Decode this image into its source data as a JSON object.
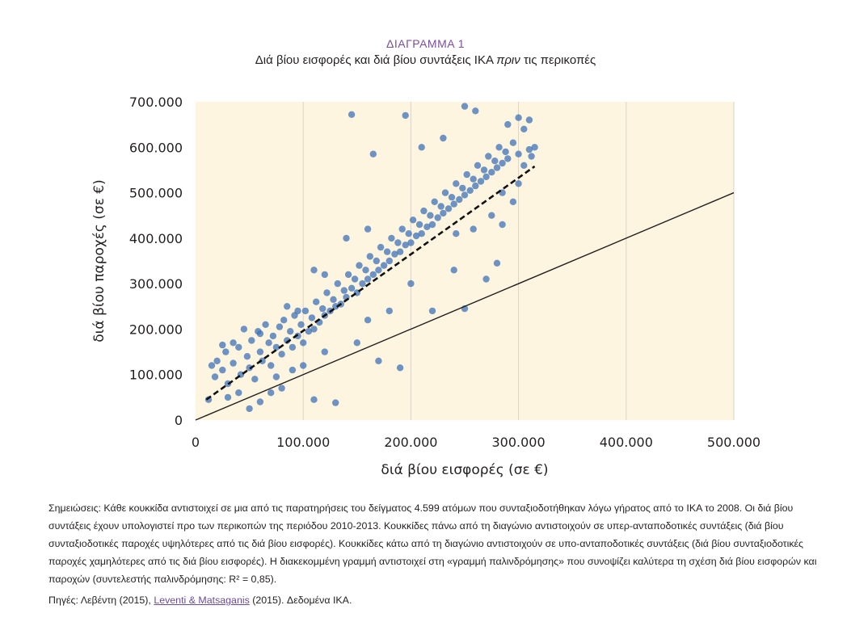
{
  "figure": {
    "label": "ΔΙΑΓΡΑΜΜΑ 1",
    "title_pre": "Διά βίου εισφορές και διά βίου συντάξεις ΙΚΑ ",
    "title_italic": "πριν",
    "title_post": " τις περικοπές"
  },
  "chart_data": {
    "type": "scatter",
    "xlabel": "διά βίου εισφορές (σε €)",
    "ylabel": "διά βίου παροχές (σε €)",
    "xlim": [
      0,
      500000
    ],
    "ylim": [
      0,
      700000
    ],
    "xticks": [
      0,
      100000,
      200000,
      300000,
      400000,
      500000
    ],
    "xtick_labels": [
      "0",
      "100.000",
      "200.000",
      "300.000",
      "400.000",
      "500.000"
    ],
    "yticks": [
      0,
      100000,
      200000,
      300000,
      400000,
      500000,
      600000,
      700000
    ],
    "ytick_labels": [
      "0",
      "100.000",
      "200.000",
      "300.000",
      "400.000",
      "500.000",
      "600.000",
      "700.000"
    ],
    "grid": "vertical",
    "plot_background": "#fdf5e0",
    "point_color": "#3d72b8",
    "n_observations": 4599,
    "diagonal_line": {
      "x": [
        0,
        500000
      ],
      "y": [
        0,
        500000
      ],
      "style": "solid",
      "color": "#231f20"
    },
    "regression_line": {
      "x": [
        10000,
        315000
      ],
      "y": [
        45000,
        558000
      ],
      "style": "dashed",
      "color": "#111111",
      "r_squared": 0.85
    },
    "points": [
      [
        12000,
        45000
      ],
      [
        18000,
        95000
      ],
      [
        20000,
        130000
      ],
      [
        25000,
        110000
      ],
      [
        28000,
        150000
      ],
      [
        30000,
        80000
      ],
      [
        35000,
        125000
      ],
      [
        40000,
        160000
      ],
      [
        42000,
        100000
      ],
      [
        45000,
        200000
      ],
      [
        48000,
        140000
      ],
      [
        50000,
        115000
      ],
      [
        52000,
        175000
      ],
      [
        55000,
        90000
      ],
      [
        58000,
        195000
      ],
      [
        60000,
        150000
      ],
      [
        62000,
        130000
      ],
      [
        65000,
        210000
      ],
      [
        68000,
        170000
      ],
      [
        70000,
        120000
      ],
      [
        72000,
        185000
      ],
      [
        75000,
        160000
      ],
      [
        78000,
        205000
      ],
      [
        80000,
        145000
      ],
      [
        82000,
        220000
      ],
      [
        85000,
        175000
      ],
      [
        88000,
        195000
      ],
      [
        90000,
        160000
      ],
      [
        92000,
        230000
      ],
      [
        95000,
        185000
      ],
      [
        98000,
        210000
      ],
      [
        100000,
        170000
      ],
      [
        102000,
        240000
      ],
      [
        105000,
        195000
      ],
      [
        108000,
        225000
      ],
      [
        110000,
        200000
      ],
      [
        112000,
        260000
      ],
      [
        115000,
        215000
      ],
      [
        118000,
        245000
      ],
      [
        120000,
        230000
      ],
      [
        122000,
        280000
      ],
      [
        125000,
        240000
      ],
      [
        128000,
        265000
      ],
      [
        130000,
        250000
      ],
      [
        132000,
        300000
      ],
      [
        135000,
        255000
      ],
      [
        138000,
        285000
      ],
      [
        140000,
        270000
      ],
      [
        142000,
        320000
      ],
      [
        145000,
        290000
      ],
      [
        148000,
        310000
      ],
      [
        150000,
        280000
      ],
      [
        152000,
        340000
      ],
      [
        155000,
        300000
      ],
      [
        158000,
        330000
      ],
      [
        160000,
        310000
      ],
      [
        162000,
        360000
      ],
      [
        165000,
        320000
      ],
      [
        168000,
        350000
      ],
      [
        170000,
        330000
      ],
      [
        172000,
        380000
      ],
      [
        175000,
        340000
      ],
      [
        178000,
        370000
      ],
      [
        180000,
        350000
      ],
      [
        182000,
        400000
      ],
      [
        185000,
        365000
      ],
      [
        188000,
        390000
      ],
      [
        190000,
        370000
      ],
      [
        192000,
        420000
      ],
      [
        195000,
        385000
      ],
      [
        198000,
        410000
      ],
      [
        200000,
        390000
      ],
      [
        202000,
        440000
      ],
      [
        205000,
        405000
      ],
      [
        208000,
        430000
      ],
      [
        210000,
        410000
      ],
      [
        212000,
        460000
      ],
      [
        215000,
        425000
      ],
      [
        218000,
        450000
      ],
      [
        220000,
        430000
      ],
      [
        222000,
        480000
      ],
      [
        225000,
        445000
      ],
      [
        228000,
        470000
      ],
      [
        230000,
        455000
      ],
      [
        232000,
        500000
      ],
      [
        235000,
        465000
      ],
      [
        238000,
        490000
      ],
      [
        240000,
        475000
      ],
      [
        242000,
        520000
      ],
      [
        245000,
        485000
      ],
      [
        248000,
        510000
      ],
      [
        250000,
        495000
      ],
      [
        252000,
        540000
      ],
      [
        255000,
        505000
      ],
      [
        258000,
        530000
      ],
      [
        260000,
        515000
      ],
      [
        262000,
        560000
      ],
      [
        265000,
        525000
      ],
      [
        268000,
        550000
      ],
      [
        270000,
        535000
      ],
      [
        272000,
        580000
      ],
      [
        275000,
        545000
      ],
      [
        278000,
        570000
      ],
      [
        280000,
        555000
      ],
      [
        282000,
        600000
      ],
      [
        285000,
        565000
      ],
      [
        288000,
        590000
      ],
      [
        290000,
        575000
      ],
      [
        295000,
        610000
      ],
      [
        300000,
        585000
      ],
      [
        305000,
        640000
      ],
      [
        310000,
        595000
      ],
      [
        145000,
        672000
      ],
      [
        250000,
        690000
      ],
      [
        260000,
        680000
      ],
      [
        195000,
        670000
      ],
      [
        165000,
        585000
      ],
      [
        210000,
        600000
      ],
      [
        230000,
        620000
      ],
      [
        300000,
        665000
      ],
      [
        310000,
        660000
      ],
      [
        290000,
        650000
      ],
      [
        70000,
        60000
      ],
      [
        80000,
        70000
      ],
      [
        110000,
        45000
      ],
      [
        130000,
        38000
      ],
      [
        50000,
        25000
      ],
      [
        60000,
        40000
      ],
      [
        170000,
        130000
      ],
      [
        190000,
        115000
      ],
      [
        220000,
        240000
      ],
      [
        250000,
        245000
      ],
      [
        270000,
        310000
      ],
      [
        280000,
        345000
      ],
      [
        240000,
        330000
      ],
      [
        200000,
        300000
      ],
      [
        180000,
        240000
      ],
      [
        160000,
        220000
      ],
      [
        150000,
        170000
      ],
      [
        120000,
        150000
      ],
      [
        100000,
        120000
      ],
      [
        90000,
        110000
      ],
      [
        75000,
        95000
      ],
      [
        40000,
        60000
      ],
      [
        30000,
        50000
      ],
      [
        120000,
        320000
      ],
      [
        140000,
        400000
      ],
      [
        160000,
        420000
      ],
      [
        110000,
        330000
      ],
      [
        95000,
        240000
      ],
      [
        85000,
        250000
      ],
      [
        60000,
        190000
      ],
      [
        35000,
        170000
      ],
      [
        25000,
        165000
      ],
      [
        15000,
        120000
      ],
      [
        258000,
        420000
      ],
      [
        275000,
        450000
      ],
      [
        285000,
        500000
      ],
      [
        305000,
        560000
      ],
      [
        312000,
        580000
      ],
      [
        315000,
        600000
      ],
      [
        300000,
        520000
      ],
      [
        285000,
        430000
      ],
      [
        295000,
        480000
      ],
      [
        242000,
        410000
      ]
    ]
  },
  "notes": {
    "text": "Σημειώσεις: Κάθε κουκκίδα αντιστοιχεί σε μια από τις παρατηρήσεις του δείγματος 4.599 ατόμων που συνταξιοδοτήθηκαν λόγω γήρατος από το ΙΚΑ το 2008. Οι διά βίου συντάξεις έχουν υπολογιστεί προ των περικοπών της περιόδου 2010-2013. Κουκκίδες πάνω από τη διαγώνιο αντιστοιχούν σε υπερ-ανταποδοτικές συντάξεις (διά βίου συνταξιοδοτικές παροχές υψηλότερες από τις διά βίου εισφορές). Κουκκίδες κάτω από τη διαγώνιο αντιστοιχούν σε υπο-ανταποδοτικές συντάξεις (διά βίου συνταξιοδοτικές παροχές χαμηλότερες από τις διά βίου εισφορές). Η διακεκομμένη γραμμή αντιστοιχεί στη «γραμμή παλινδρόμησης» που συνοψίζει καλύτερα τη σχέση διά βίου εισφορών και παροχών (συντελεστής παλινδρόμησης: R² = 0,85)."
  },
  "sources": {
    "prefix": "Πηγές: Λεβέντη (2015), ",
    "link": "Leventi & Matsaganis",
    "suffix": " (2015). Δεδομένα ΙΚΑ."
  }
}
